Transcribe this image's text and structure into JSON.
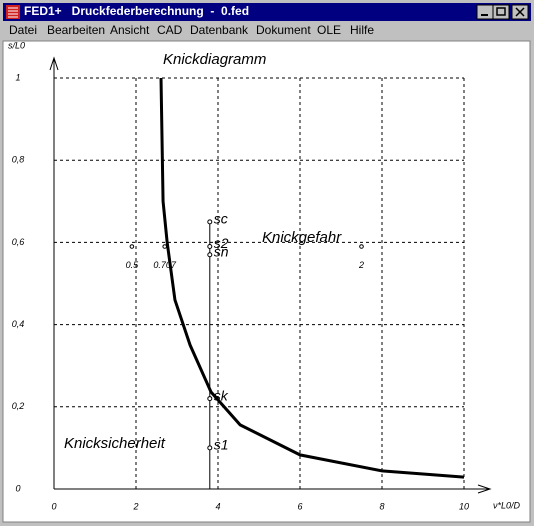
{
  "window": {
    "title": "FED1+   Druckfederberechnung  -  0.fed",
    "menu": [
      "Datei",
      "Bearbeiten",
      "Ansicht",
      "CAD",
      "Datenbank",
      "Dokument",
      "OLE",
      "Hilfe"
    ]
  },
  "chart_data": {
    "type": "line",
    "title": "Knickdiagramm",
    "y_label": "s/L0",
    "x_label": "ν*L0/D",
    "xlim": [
      0,
      10
    ],
    "ylim": [
      0,
      1
    ],
    "xticks": [
      0,
      2,
      4,
      6,
      8,
      10
    ],
    "yticks": [
      0,
      {
        "value": 0.2,
        "label": "0,2"
      },
      {
        "value": 0.4,
        "label": "0,4"
      },
      {
        "value": 0.6,
        "label": "0,6"
      },
      {
        "value": 0.8,
        "label": "0,8"
      },
      1
    ],
    "grid": true,
    "series": [
      {
        "color": "#000000",
        "x": [
          2.61,
          2.66,
          2.76,
          2.95,
          3.32,
          3.83,
          4.54,
          6,
          8,
          10
        ],
        "values": [
          1.0,
          0.7,
          0.6,
          0.46,
          0.35,
          0.236,
          0.156,
          0.083,
          0.044,
          0.029
        ]
      }
    ],
    "points": [
      {
        "label": "sc",
        "x": 3.8,
        "y": 0.65
      },
      {
        "label": "s2",
        "x": 3.8,
        "y": 0.59
      },
      {
        "label": "sn",
        "x": 3.8,
        "y": 0.57
      },
      {
        "label": "sk",
        "x": 3.8,
        "y": 0.22
      },
      {
        "label": "s1",
        "x": 3.8,
        "y": 0.1
      }
    ],
    "end_markers": [
      {
        "label": "0.5",
        "x": 1.9,
        "y": 0.59
      },
      {
        "label": "0.707",
        "x": 2.7,
        "y": 0.59
      },
      {
        "label": "2",
        "x": 7.5,
        "y": 0.59
      }
    ],
    "annotations": [
      "Knickgefahr",
      "Knicksicherheit"
    ]
  }
}
